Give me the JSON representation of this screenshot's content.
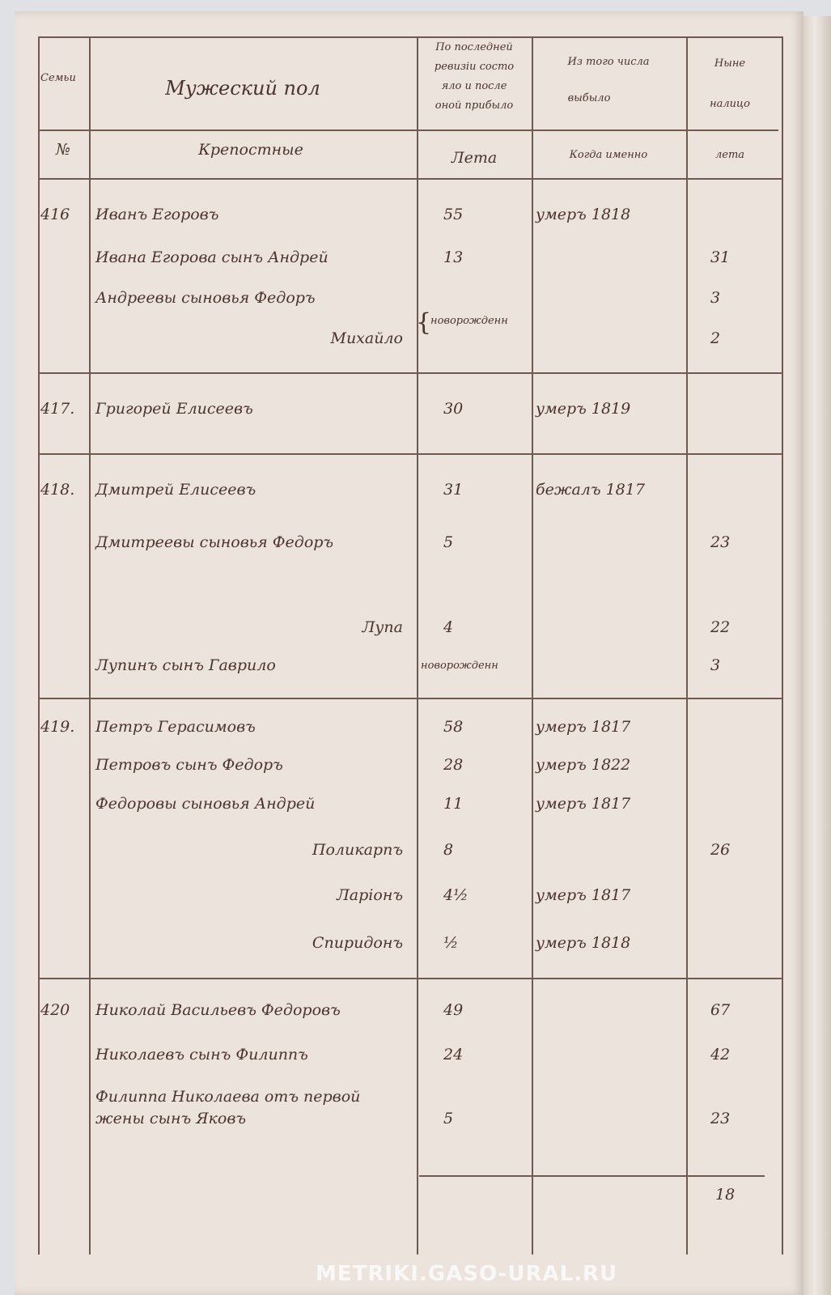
{
  "watermark": "METRIKI.GASO-URAL.RU",
  "header": {
    "col_family": "Семьи",
    "col_no": "№",
    "col_name": "Мужеский пол",
    "col_name_sub": "Крепостные",
    "col_last_rev": [
      "По последней",
      "ревизіи состо",
      "яло и после",
      "оной прибыло"
    ],
    "col_last_rev_sub": "Лета",
    "col_departed": "Из того числа",
    "col_departed_2": "выбыло",
    "col_departed_sub": "Когда именно",
    "col_now": "Ныне",
    "col_now_2": "налицо",
    "col_now_sub": "лета"
  },
  "families": [
    {
      "no": "416",
      "rows": [
        {
          "name": "Иванъ Егоровъ",
          "age": "55",
          "departed": "умеръ 1818",
          "now": ""
        },
        {
          "name": "Ивана Егорова сынъ Андрей",
          "age": "13",
          "departed": "",
          "now": "31"
        },
        {
          "name": "Андреевы сыновья Федоръ",
          "age": "",
          "departed": "",
          "now": "3"
        },
        {
          "name": "Михайло",
          "age": "",
          "departed": "",
          "now": "2"
        }
      ],
      "note": "новорожденн"
    },
    {
      "no": "417.",
      "rows": [
        {
          "name": "Григорей Елисеевъ",
          "age": "30",
          "departed": "умеръ 1819",
          "now": ""
        }
      ]
    },
    {
      "no": "418.",
      "rows": [
        {
          "name": "Дмитрей Елисеевъ",
          "age": "31",
          "departed": "бежалъ 1817",
          "now": ""
        },
        {
          "name": "Дмитреевы сыновья Федоръ",
          "age": "5",
          "departed": "",
          "now": "23"
        },
        {
          "name": "Лупа",
          "age": "4",
          "departed": "",
          "now": "22"
        },
        {
          "name": "Лупинъ сынъ Гаврило",
          "age": "новорожденн",
          "departed": "",
          "now": "3"
        }
      ]
    },
    {
      "no": "419.",
      "rows": [
        {
          "name": "Петръ Герасимовъ",
          "age": "58",
          "departed": "умеръ 1817",
          "now": ""
        },
        {
          "name": "Петровъ сынъ Федоръ",
          "age": "28",
          "departed": "умеръ 1822",
          "now": ""
        },
        {
          "name": "Федоровы сыновья Андрей",
          "age": "11",
          "departed": "умеръ 1817",
          "now": ""
        },
        {
          "name": "Поликарпъ",
          "age": "8",
          "departed": "",
          "now": "26"
        },
        {
          "name": "Ларіонъ",
          "age": "4½",
          "departed": "умеръ 1817",
          "now": ""
        },
        {
          "name": "Спиридонъ",
          "age": "½",
          "departed": "умеръ 1818",
          "now": ""
        }
      ]
    },
    {
      "no": "420",
      "rows": [
        {
          "name": "Николай Васильевъ Федоровъ",
          "age": "49",
          "departed": "",
          "now": "67"
        },
        {
          "name": "Николаевъ сынъ Филиппъ",
          "age": "24",
          "departed": "",
          "now": "42"
        },
        {
          "name": "Филиппа Николаева отъ первой",
          "age": "",
          "departed": "",
          "now": ""
        },
        {
          "name": "жены сынъ Яковъ",
          "age": "5",
          "departed": "",
          "now": "23"
        }
      ]
    }
  ],
  "total": "18"
}
